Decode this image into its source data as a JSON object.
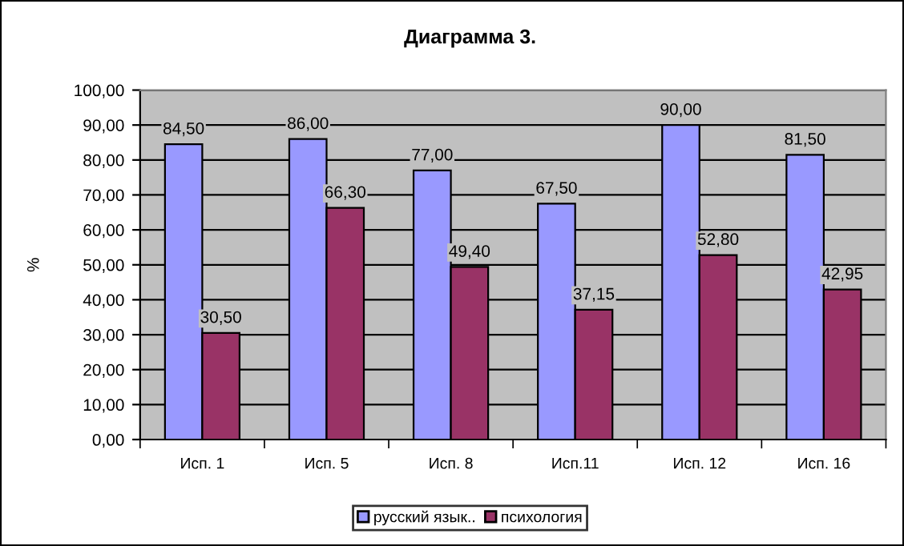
{
  "chart_data": {
    "type": "bar",
    "title": "Диаграмма 3.",
    "ylabel": "%",
    "categories": [
      "Исп. 1",
      "Исп. 5",
      "Исп. 8",
      "Исп.11",
      "Исп. 12",
      "Исп. 16"
    ],
    "series": [
      {
        "name": "русский язык..",
        "color": "#9999ff",
        "values": [
          84.5,
          86.0,
          77.0,
          67.5,
          90.0,
          81.5
        ],
        "value_labels": [
          "84,50",
          "86,00",
          "77,00",
          "67,50",
          "90,00",
          "81,50"
        ]
      },
      {
        "name": "психология",
        "color": "#993366",
        "values": [
          30.5,
          66.3,
          49.4,
          37.15,
          52.8,
          42.95
        ],
        "value_labels": [
          "30,50",
          "66,30",
          "49,40",
          "37,15",
          "52,80",
          "42,95"
        ]
      }
    ],
    "ylim": [
      0,
      100
    ],
    "yticks": [
      {
        "value": 0,
        "label": "0,00"
      },
      {
        "value": 10,
        "label": "10,00"
      },
      {
        "value": 20,
        "label": "20,00"
      },
      {
        "value": 30,
        "label": "30,00"
      },
      {
        "value": 40,
        "label": "40,00"
      },
      {
        "value": 50,
        "label": "50,00"
      },
      {
        "value": 60,
        "label": "60,00"
      },
      {
        "value": 70,
        "label": "70,00"
      },
      {
        "value": 80,
        "label": "80,00"
      },
      {
        "value": 90,
        "label": "90,00"
      },
      {
        "value": 100,
        "label": "100,00"
      }
    ],
    "grid": "y",
    "legend": "bottom"
  }
}
